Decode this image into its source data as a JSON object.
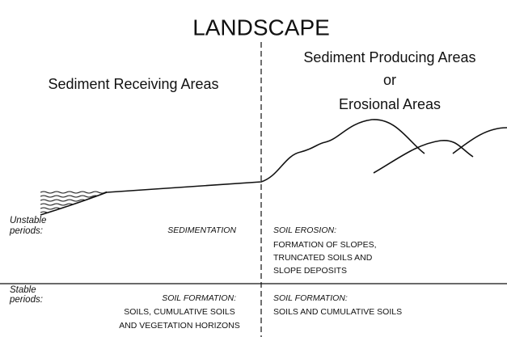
{
  "title": "LANDSCAPE",
  "columns": {
    "left": {
      "heading": [
        "Sediment Receiving Areas"
      ]
    },
    "right": {
      "heading": [
        "Sediment Producing Areas",
        "or",
        "Erosional Areas"
      ]
    }
  },
  "rows": [
    {
      "label": [
        "Unstable",
        "periods:"
      ],
      "left": {
        "heading": "SEDIMENTATION"
      },
      "right": {
        "heading": "SOIL EROSION:",
        "lines": [
          "FORMATION OF SLOPES,",
          "TRUNCATED SOILS AND",
          "SLOPE DEPOSITS"
        ]
      }
    },
    {
      "label": [
        "Stable",
        "periods:"
      ],
      "left": {
        "heading": "SOIL FORMATION:",
        "lines": [
          "SOILS, CUMULATIVE SOILS",
          "AND VEGETATION HORIZONS"
        ]
      },
      "right": {
        "heading": "SOIL FORMATION:",
        "lines": [
          "SOILS AND CUMULATIVE SOILS"
        ]
      }
    }
  ]
}
